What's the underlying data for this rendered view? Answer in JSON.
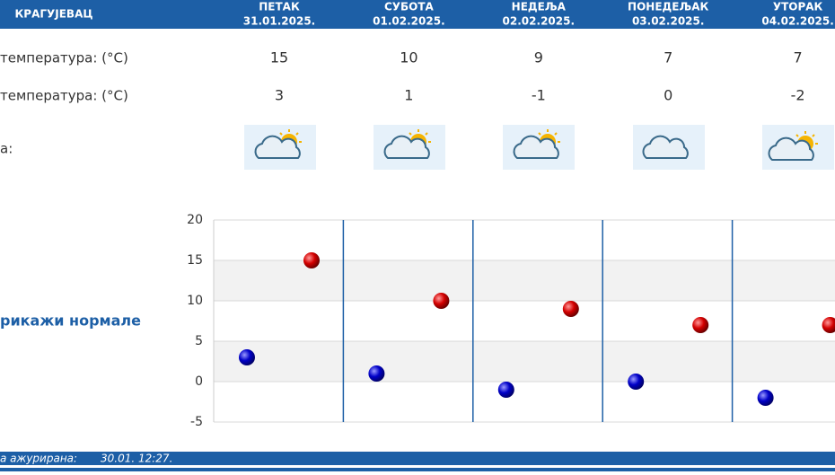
{
  "header": {
    "city": "КРАГУЈЕВАЦ"
  },
  "days": [
    {
      "name": "ПЕТАК",
      "date": "31.01.2025."
    },
    {
      "name": "СУБОТА",
      "date": "01.02.2025."
    },
    {
      "name": "НЕДЕЉА",
      "date": "02.02.2025."
    },
    {
      "name": "ПОНЕДЕЉАК",
      "date": "03.02.2025."
    },
    {
      "name": "УТОРАК",
      "date": "04.02.2025."
    }
  ],
  "rows": {
    "max_label": "температура: (°C)",
    "min_label": "температура: (°C)",
    "weather_label": "а:"
  },
  "link": "рикажи нормале",
  "footer": {
    "label": "а ажурирана:",
    "time": "30.01. 12:27."
  },
  "chart_data": {
    "type": "dot",
    "series": [
      {
        "color": "#d40000",
        "values": [
          15,
          10,
          9,
          7,
          7
        ]
      },
      {
        "color": "#0000c8",
        "values": [
          3,
          1,
          -1,
          0,
          -2
        ]
      }
    ],
    "ylim": [
      -5,
      20
    ],
    "yticks": [
      -5,
      0,
      5,
      10,
      15,
      20
    ],
    "grid": true
  }
}
